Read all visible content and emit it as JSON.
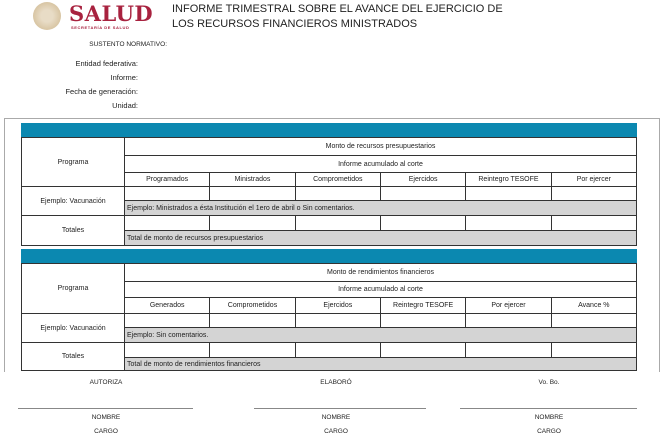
{
  "header": {
    "logo_text": "SALUD",
    "logo_subtext": "SECRETARÍA DE SALUD",
    "title_line1": "INFORME TRIMESTRAL SOBRE EL AVANCE DEL EJERCICIO DE",
    "title_line2": "LOS RECURSOS FINANCIEROS MINISTRADOS"
  },
  "fields": {
    "sustento": "SUSTENTO NORMATIVO:",
    "entidad": "Entidad federativa:",
    "informe": "Informe:",
    "fecha": "Fecha de generación:",
    "unidad": "Unidad:"
  },
  "table1": {
    "programa": "Programa",
    "group": "Monto de recursos presupuestarios",
    "sub": "Informe acumulado al corte",
    "columns": [
      "Programados",
      "Ministrados",
      "Comprometidos",
      "Ejercidos",
      "Reintegro TESOFE",
      "Por ejercer"
    ],
    "row_label": "Ejemplo: Vacunación",
    "row_comment": "Ejemplo: Ministrados a ésta Institución el 1ero de abril o Sin comentarios.",
    "totals_label": "Totales",
    "totals_comment": "Total de monto de recursos presupuestarios"
  },
  "table2": {
    "programa": "Programa",
    "group": "Monto de rendimientos financieros",
    "sub": "Informe acumulado al corte",
    "columns": [
      "Generados",
      "Comprometidos",
      "Ejercidos",
      "Reintegro TESOFE",
      "Por ejercer",
      "Avance %"
    ],
    "row_label": "Ejemplo: Vacunación",
    "row_comment": "Ejemplo: Sin comentarios.",
    "totals_label": "Totales",
    "totals_comment": "Total de monto de rendimientos financieros"
  },
  "signatures": [
    {
      "role": "AUTORIZA",
      "name": "NOMBRE",
      "position": "CARGO"
    },
    {
      "role": "ELABORÓ",
      "name": "NOMBRE",
      "position": "CARGO"
    },
    {
      "role": "Vo. Bo.",
      "name": "NOMBRE",
      "position": "CARGO"
    }
  ],
  "colors": {
    "header_bar": "#0b88b0",
    "comment_row": "#d4d4d4",
    "brand": "#a8223f"
  }
}
